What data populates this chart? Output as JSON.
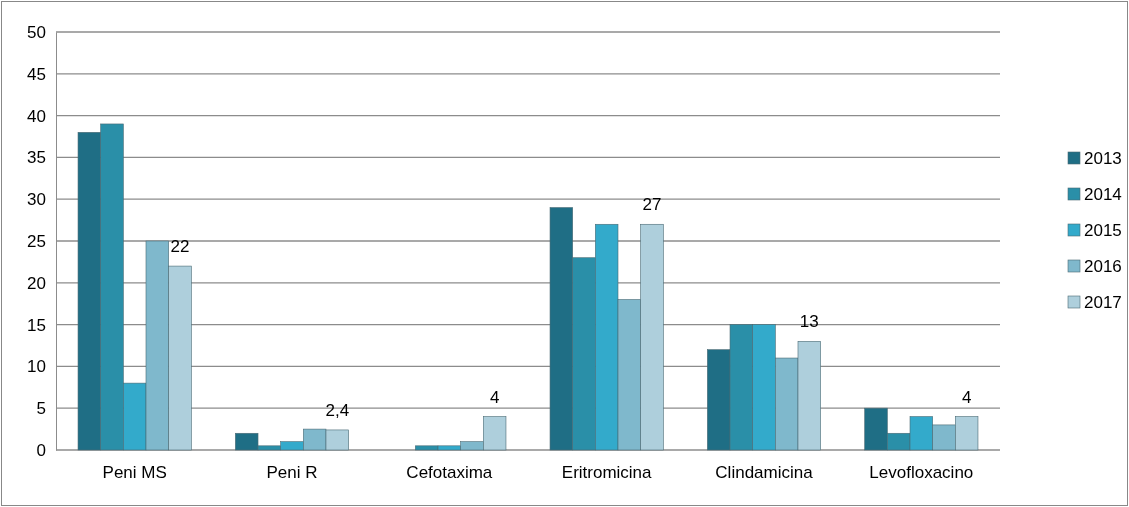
{
  "chart_data": {
    "type": "bar",
    "categories": [
      "Peni MS",
      "Peni R",
      "Cefotaxima",
      "Eritromicina",
      "Clindamicina",
      "Levofloxacino"
    ],
    "series": [
      {
        "name": "2013",
        "color": "#1f6e85",
        "values": [
          38,
          2,
          0,
          29,
          12,
          5
        ]
      },
      {
        "name": "2014",
        "color": "#2a8fa8",
        "values": [
          39,
          0.5,
          0.5,
          23,
          15,
          2
        ]
      },
      {
        "name": "2015",
        "color": "#33aacb",
        "values": [
          8,
          1,
          0.5,
          27,
          15,
          4
        ]
      },
      {
        "name": "2016",
        "color": "#7fb8cc",
        "values": [
          25,
          2.5,
          1,
          18,
          11,
          3
        ]
      },
      {
        "name": "2017",
        "color": "#aecfdc",
        "values": [
          22,
          2.4,
          4,
          27,
          13,
          4
        ],
        "value_labels": [
          "22",
          "2,4",
          "4",
          "27",
          "13",
          "4"
        ]
      }
    ],
    "ylim": [
      0,
      50
    ],
    "yticks": [
      0,
      5,
      10,
      15,
      20,
      25,
      30,
      35,
      40,
      45,
      50
    ],
    "grid": "y",
    "legend": "right"
  }
}
